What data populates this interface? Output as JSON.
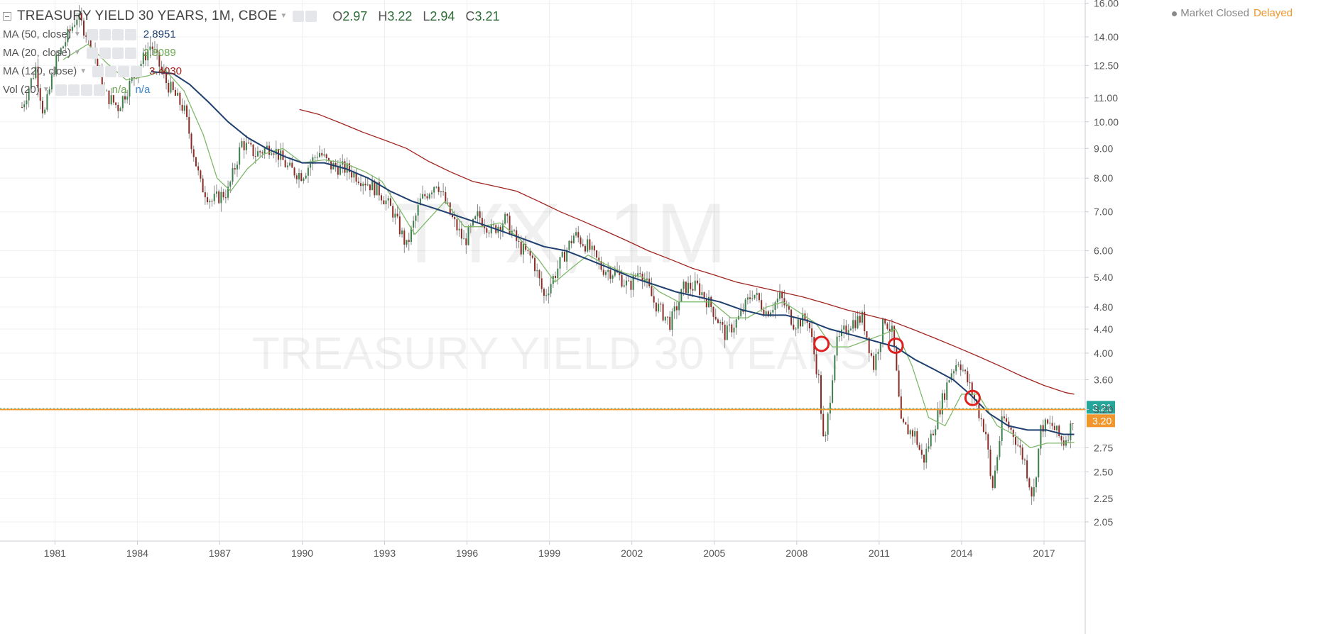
{
  "header": {
    "title": "TREASURY YIELD 30 YEARS, 1M, CBOE",
    "ohlc": [
      {
        "key": "O",
        "value": "2.97"
      },
      {
        "key": "H",
        "value": "3.22"
      },
      {
        "key": "L",
        "value": "2.94"
      },
      {
        "key": "C",
        "value": "3.21"
      }
    ]
  },
  "indicators": [
    {
      "label": "MA (50, close)",
      "value": "2.8951",
      "color": "#1f3f6e"
    },
    {
      "label": "MA (20, close)",
      "value": "2.8089",
      "color": "#6aa84f"
    },
    {
      "label": "MA (120, close)",
      "value": "3.4030",
      "color": "#a0241f"
    },
    {
      "label": "Vol (20)",
      "value": "n/a",
      "value2": "n/a",
      "color": "#6aa84f",
      "color2": "#3d85c6"
    }
  ],
  "status": {
    "market": "Market Closed",
    "feed": "Delayed"
  },
  "watermark": {
    "symbol": "TYX, 1M",
    "name": "TREASURY YIELD 30 YEARS"
  },
  "chart_data": {
    "type": "candlestick",
    "scale": "log",
    "ylim": [
      1.9,
      16.2
    ],
    "xlim": [
      1979.0,
      2018.5
    ],
    "y_ticks": [
      "16.00",
      "14.00",
      "12.50",
      "11.00",
      "10.00",
      "9.00",
      "8.00",
      "7.00",
      "6.00",
      "5.40",
      "4.80",
      "4.40",
      "4.00",
      "3.60",
      "3.20",
      "2.75",
      "2.50",
      "2.25",
      "2.05"
    ],
    "x_ticks": [
      "1981",
      "1984",
      "1987",
      "1990",
      "1993",
      "1996",
      "1999",
      "2002",
      "2005",
      "2008",
      "2011",
      "2014",
      "2017"
    ],
    "price_line": {
      "value": 3.21,
      "label": "3.21",
      "color": "#26a69a"
    },
    "horizontal_line": {
      "value": 3.2,
      "label": "3.20",
      "color": "#f0962c"
    },
    "close_path": [
      [
        1979.8,
        10.6
      ],
      [
        1980.3,
        12.4
      ],
      [
        1980.6,
        10.2
      ],
      [
        1981.0,
        12.6
      ],
      [
        1981.8,
        15.2
      ],
      [
        1982.3,
        13.8
      ],
      [
        1982.8,
        11.2
      ],
      [
        1983.3,
        10.6
      ],
      [
        1983.8,
        11.8
      ],
      [
        1984.5,
        13.6
      ],
      [
        1985.0,
        11.8
      ],
      [
        1985.7,
        10.5
      ],
      [
        1986.3,
        7.8
      ],
      [
        1986.7,
        7.3
      ],
      [
        1987.3,
        7.6
      ],
      [
        1987.8,
        9.2
      ],
      [
        1988.3,
        8.8
      ],
      [
        1988.9,
        9.1
      ],
      [
        1989.5,
        8.3
      ],
      [
        1990.0,
        8.1
      ],
      [
        1990.6,
        8.9
      ],
      [
        1991.0,
        8.4
      ],
      [
        1991.6,
        8.3
      ],
      [
        1992.3,
        7.9
      ],
      [
        1992.8,
        7.6
      ],
      [
        1993.3,
        7.0
      ],
      [
        1993.8,
        6.1
      ],
      [
        1994.3,
        7.3
      ],
      [
        1994.9,
        7.9
      ],
      [
        1995.4,
        6.9
      ],
      [
        1995.9,
        6.2
      ],
      [
        1996.4,
        6.9
      ],
      [
        1996.9,
        6.5
      ],
      [
        1997.4,
        6.8
      ],
      [
        1997.9,
        6.1
      ],
      [
        1998.4,
        5.8
      ],
      [
        1998.8,
        5.0
      ],
      [
        1999.3,
        5.6
      ],
      [
        1999.9,
        6.4
      ],
      [
        2000.4,
        6.1
      ],
      [
        2000.9,
        5.6
      ],
      [
        2001.4,
        5.5
      ],
      [
        2001.9,
        5.2
      ],
      [
        2002.3,
        5.6
      ],
      [
        2002.8,
        4.9
      ],
      [
        2003.4,
        4.5
      ],
      [
        2003.9,
        5.2
      ],
      [
        2004.4,
        5.2
      ],
      [
        2004.9,
        4.8
      ],
      [
        2005.4,
        4.3
      ],
      [
        2005.9,
        4.6
      ],
      [
        2006.4,
        5.1
      ],
      [
        2006.9,
        4.7
      ],
      [
        2007.4,
        5.0
      ],
      [
        2007.9,
        4.5
      ],
      [
        2008.4,
        4.6
      ],
      [
        2008.8,
        3.6
      ],
      [
        2009.0,
        2.7
      ],
      [
        2009.4,
        4.1
      ],
      [
        2009.9,
        4.5
      ],
      [
        2010.4,
        4.6
      ],
      [
        2010.8,
        3.8
      ],
      [
        2011.2,
        4.6
      ],
      [
        2011.5,
        4.3
      ],
      [
        2011.8,
        3.0
      ],
      [
        2012.3,
        2.9
      ],
      [
        2012.6,
        2.6
      ],
      [
        2013.1,
        3.1
      ],
      [
        2013.6,
        3.7
      ],
      [
        2013.9,
        3.9
      ],
      [
        2014.4,
        3.4
      ],
      [
        2014.9,
        2.9
      ],
      [
        2015.1,
        2.3
      ],
      [
        2015.5,
        3.1
      ],
      [
        2015.9,
        2.9
      ],
      [
        2016.3,
        2.6
      ],
      [
        2016.6,
        2.25
      ],
      [
        2016.9,
        3.0
      ],
      [
        2017.3,
        3.0
      ],
      [
        2017.7,
        2.8
      ],
      [
        2018.0,
        3.0
      ],
      [
        2018.1,
        3.21
      ]
    ],
    "series": [
      {
        "name": "MA (20, close)",
        "color": "#7fb86b",
        "points": [
          [
            1981.3,
            12.8
          ],
          [
            1982.2,
            13.6
          ],
          [
            1982.9,
            12.6
          ],
          [
            1983.6,
            11.8
          ],
          [
            1984.4,
            12.0
          ],
          [
            1985.0,
            12.3
          ],
          [
            1985.7,
            11.3
          ],
          [
            1986.4,
            9.5
          ],
          [
            1986.9,
            8.0
          ],
          [
            1987.4,
            7.6
          ],
          [
            1988.0,
            8.3
          ],
          [
            1988.6,
            8.8
          ],
          [
            1989.3,
            9.0
          ],
          [
            1990.0,
            8.5
          ],
          [
            1990.8,
            8.6
          ],
          [
            1991.5,
            8.5
          ],
          [
            1992.3,
            8.2
          ],
          [
            1992.9,
            7.9
          ],
          [
            1993.6,
            7.0
          ],
          [
            1994.1,
            6.4
          ],
          [
            1994.6,
            6.8
          ],
          [
            1995.2,
            7.3
          ],
          [
            1995.9,
            6.6
          ],
          [
            1996.5,
            6.6
          ],
          [
            1997.2,
            6.7
          ],
          [
            1997.9,
            6.3
          ],
          [
            1998.6,
            5.8
          ],
          [
            1999.2,
            5.3
          ],
          [
            1999.8,
            5.6
          ],
          [
            2000.4,
            5.9
          ],
          [
            2001.0,
            5.7
          ],
          [
            2001.7,
            5.5
          ],
          [
            2002.4,
            5.4
          ],
          [
            2003.0,
            5.1
          ],
          [
            2003.7,
            4.9
          ],
          [
            2004.3,
            4.9
          ],
          [
            2004.9,
            4.9
          ],
          [
            2005.6,
            4.6
          ],
          [
            2006.2,
            4.6
          ],
          [
            2006.9,
            4.8
          ],
          [
            2007.5,
            4.9
          ],
          [
            2008.1,
            4.7
          ],
          [
            2008.7,
            4.5
          ],
          [
            2009.3,
            4.1
          ],
          [
            2009.9,
            4.1
          ],
          [
            2010.5,
            4.2
          ],
          [
            2011.1,
            4.3
          ],
          [
            2011.6,
            4.4
          ],
          [
            2012.2,
            3.8
          ],
          [
            2012.8,
            3.1
          ],
          [
            2013.4,
            3.0
          ],
          [
            2014.0,
            3.4
          ],
          [
            2014.6,
            3.4
          ],
          [
            2015.3,
            3.0
          ],
          [
            2015.9,
            2.9
          ],
          [
            2016.5,
            2.75
          ],
          [
            2017.1,
            2.8
          ],
          [
            2017.7,
            2.8
          ],
          [
            2018.1,
            2.81
          ]
        ]
      },
      {
        "name": "MA (50, close)",
        "color": "#1f3f6e",
        "points": [
          [
            1984.5,
            12.2
          ],
          [
            1985.3,
            12.1
          ],
          [
            1985.9,
            11.6
          ],
          [
            1986.6,
            10.8
          ],
          [
            1987.3,
            10.0
          ],
          [
            1988.0,
            9.4
          ],
          [
            1988.7,
            9.0
          ],
          [
            1989.4,
            8.7
          ],
          [
            1990.0,
            8.5
          ],
          [
            1990.8,
            8.5
          ],
          [
            1991.6,
            8.3
          ],
          [
            1992.4,
            8.0
          ],
          [
            1993.2,
            7.6
          ],
          [
            1994.0,
            7.3
          ],
          [
            1994.8,
            7.1
          ],
          [
            1995.6,
            6.9
          ],
          [
            1996.4,
            6.7
          ],
          [
            1997.2,
            6.5
          ],
          [
            1998.0,
            6.3
          ],
          [
            1998.8,
            6.1
          ],
          [
            1999.6,
            6.0
          ],
          [
            2000.4,
            5.8
          ],
          [
            2001.2,
            5.6
          ],
          [
            2002.0,
            5.4
          ],
          [
            2002.8,
            5.25
          ],
          [
            2003.6,
            5.1
          ],
          [
            2004.4,
            5.0
          ],
          [
            2005.2,
            4.9
          ],
          [
            2006.0,
            4.75
          ],
          [
            2006.8,
            4.65
          ],
          [
            2007.6,
            4.65
          ],
          [
            2008.4,
            4.55
          ],
          [
            2009.2,
            4.4
          ],
          [
            2010.0,
            4.3
          ],
          [
            2010.8,
            4.2
          ],
          [
            2011.6,
            4.1
          ],
          [
            2012.3,
            3.9
          ],
          [
            2013.0,
            3.75
          ],
          [
            2013.7,
            3.6
          ],
          [
            2014.3,
            3.4
          ],
          [
            2015.0,
            3.15
          ],
          [
            2015.7,
            3.0
          ],
          [
            2016.4,
            2.95
          ],
          [
            2017.1,
            2.95
          ],
          [
            2017.7,
            2.9
          ],
          [
            2018.1,
            2.9
          ]
        ]
      },
      {
        "name": "MA (120, close)",
        "color": "#a0241f",
        "points": [
          [
            1989.9,
            10.5
          ],
          [
            1990.6,
            10.3
          ],
          [
            1991.4,
            9.95
          ],
          [
            1992.2,
            9.6
          ],
          [
            1993.0,
            9.3
          ],
          [
            1993.8,
            9.0
          ],
          [
            1994.6,
            8.55
          ],
          [
            1995.4,
            8.2
          ],
          [
            1996.2,
            7.9
          ],
          [
            1997.0,
            7.75
          ],
          [
            1997.8,
            7.6
          ],
          [
            1998.6,
            7.3
          ],
          [
            1999.4,
            7.0
          ],
          [
            2000.2,
            6.75
          ],
          [
            2001.0,
            6.5
          ],
          [
            2001.8,
            6.25
          ],
          [
            2002.6,
            6.0
          ],
          [
            2003.4,
            5.8
          ],
          [
            2004.2,
            5.6
          ],
          [
            2005.0,
            5.45
          ],
          [
            2005.8,
            5.3
          ],
          [
            2006.6,
            5.2
          ],
          [
            2007.4,
            5.1
          ],
          [
            2008.2,
            5.0
          ],
          [
            2009.0,
            4.88
          ],
          [
            2009.8,
            4.75
          ],
          [
            2010.6,
            4.65
          ],
          [
            2011.4,
            4.55
          ],
          [
            2012.2,
            4.4
          ],
          [
            2013.0,
            4.25
          ],
          [
            2013.8,
            4.1
          ],
          [
            2014.6,
            3.95
          ],
          [
            2015.4,
            3.8
          ],
          [
            2016.2,
            3.65
          ],
          [
            2017.0,
            3.52
          ],
          [
            2017.8,
            3.42
          ],
          [
            2018.1,
            3.4
          ]
        ]
      }
    ],
    "annotations": [
      {
        "type": "circle",
        "x": 2008.9,
        "y": 4.15,
        "color": "#e02020"
      },
      {
        "type": "circle",
        "x": 2011.6,
        "y": 4.12,
        "color": "#e02020"
      },
      {
        "type": "circle",
        "x": 2014.4,
        "y": 3.35,
        "color": "#e02020"
      }
    ]
  }
}
